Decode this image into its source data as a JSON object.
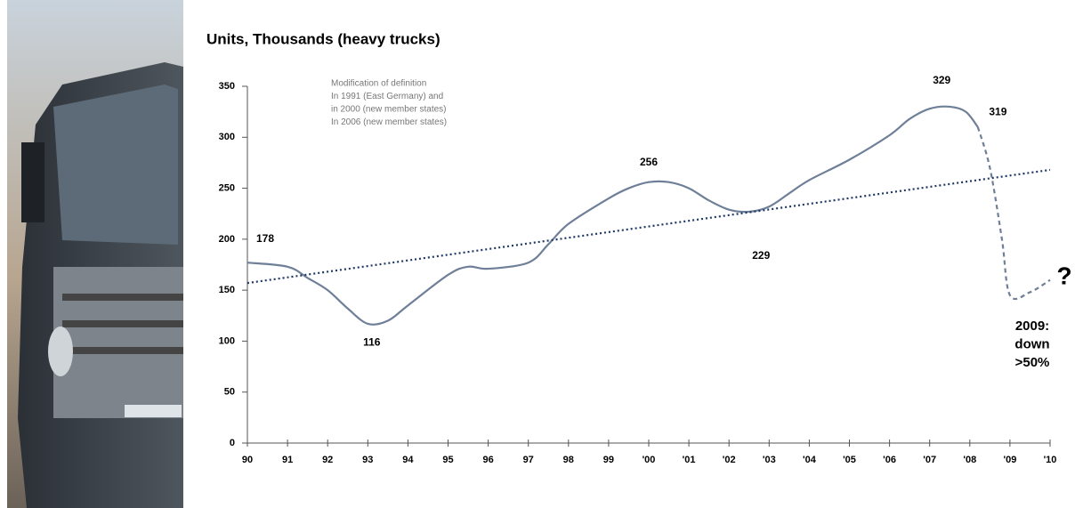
{
  "chart_data": {
    "type": "line",
    "title": "Units, Thousands (heavy trucks)",
    "notes": [
      "Modification of definition",
      "In 1991 (East Germany) and",
      "in 2000 (new  member states)",
      "In 2006 (new  member states)"
    ],
    "outlook": [
      "2009:",
      "down",
      ">50%"
    ],
    "question": "?",
    "xlim": [
      1990,
      2010
    ],
    "xticks": [
      {
        "value": 1990,
        "label": "90"
      },
      {
        "value": 1991,
        "label": "91"
      },
      {
        "value": 1992,
        "label": "92"
      },
      {
        "value": 1993,
        "label": "93"
      },
      {
        "value": 1994,
        "label": "94"
      },
      {
        "value": 1995,
        "label": "95"
      },
      {
        "value": 1996,
        "label": "96"
      },
      {
        "value": 1997,
        "label": "97"
      },
      {
        "value": 1998,
        "label": "98"
      },
      {
        "value": 1999,
        "label": "99"
      },
      {
        "value": 2000,
        "label": "'00"
      },
      {
        "value": 2001,
        "label": "'01"
      },
      {
        "value": 2002,
        "label": "'02"
      },
      {
        "value": 2003,
        "label": "'03"
      },
      {
        "value": 2004,
        "label": "'04"
      },
      {
        "value": 2005,
        "label": "'05"
      },
      {
        "value": 2006,
        "label": "'06"
      },
      {
        "value": 2007,
        "label": "'07"
      },
      {
        "value": 2008,
        "label": "'08"
      },
      {
        "value": 2009,
        "label": "'09"
      },
      {
        "value": 2010,
        "label": "'10"
      }
    ],
    "ylim": [
      0,
      350
    ],
    "yticks": [
      0,
      50,
      100,
      150,
      200,
      250,
      300,
      350
    ],
    "series": [
      {
        "color": "#6f7f98",
        "style": "solid",
        "x": [
          1990,
          1991,
          1991.5,
          1992,
          1992.5,
          1993,
          1993.5,
          1994,
          1995,
          1995.5,
          1996,
          1997,
          1997.5,
          1998,
          1999,
          1999.5,
          2000,
          2000.5,
          2001,
          2001.5,
          2002,
          2002.5,
          2003,
          2003.5,
          2004,
          2005,
          2006,
          2006.5,
          2007,
          2007.5,
          2007.9,
          2008.2
        ],
        "values": [
          177,
          173,
          162,
          150,
          132,
          117,
          120,
          135,
          165,
          173,
          171,
          177,
          195,
          215,
          240,
          250,
          256,
          256,
          250,
          238,
          229,
          227,
          232,
          245,
          258,
          278,
          302,
          318,
          328,
          330,
          325,
          310
        ]
      },
      {
        "color": "#6f7f98",
        "style": "dashed",
        "x": [
          2008.2,
          2008.5,
          2008.8,
          2009,
          2009.5,
          2010
        ],
        "values": [
          310,
          270,
          200,
          145,
          148,
          160
        ]
      },
      {
        "color": "#1f3864",
        "style": "dotted",
        "x": [
          1990,
          2010
        ],
        "values": [
          157,
          268
        ]
      }
    ],
    "labels": [
      {
        "x": 1990,
        "value": 178
      },
      {
        "x": 1993.1,
        "value": 116
      },
      {
        "x": 2000,
        "value": 256
      },
      {
        "x": 2002.8,
        "value": 229
      },
      {
        "x": 2007.3,
        "value": 329
      },
      {
        "x": 2008.7,
        "value": 319
      }
    ]
  }
}
